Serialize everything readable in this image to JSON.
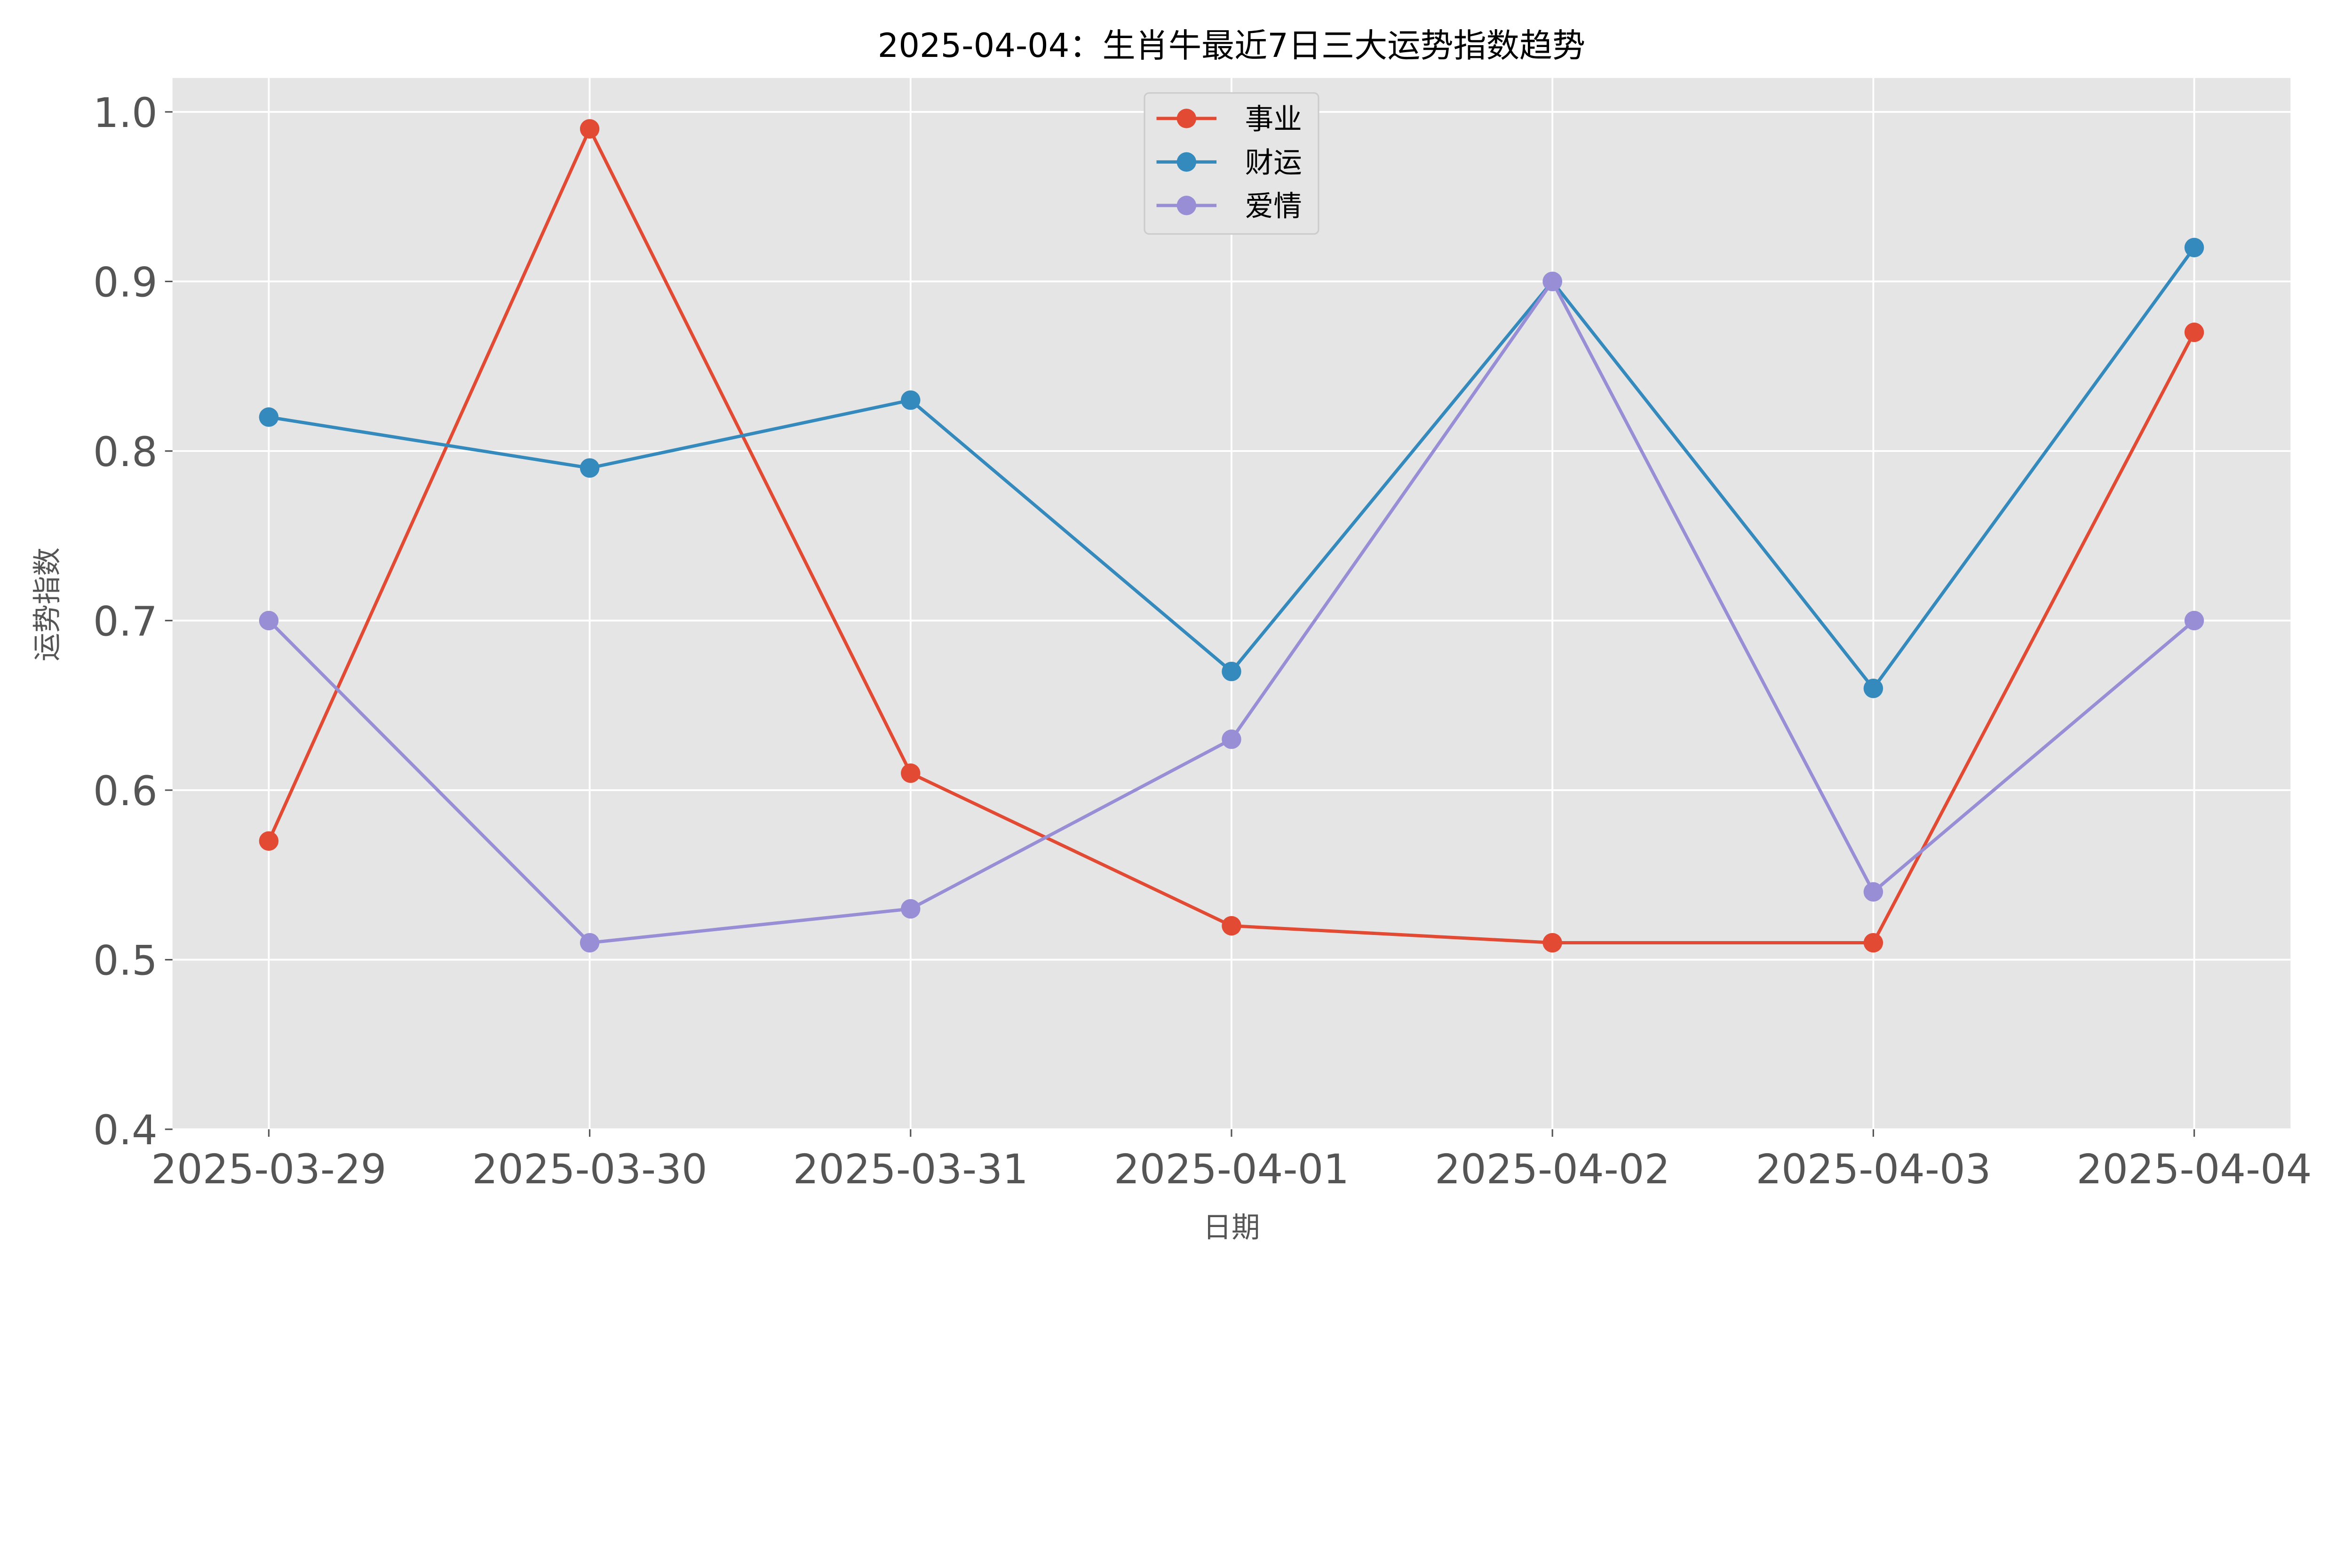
{
  "chart_data": {
    "type": "line",
    "title": "2025-04-04：生肖牛最近7日三大运势指数趋势",
    "xlabel": "日期",
    "ylabel": "运势指数",
    "categories": [
      "2025-03-29",
      "2025-03-30",
      "2025-03-31",
      "2025-04-01",
      "2025-04-02",
      "2025-04-03",
      "2025-04-04"
    ],
    "ylim": [
      0.4,
      1.02
    ],
    "yticks": [
      "0.4",
      "0.5",
      "0.6",
      "0.7",
      "0.8",
      "0.9",
      "1.0"
    ],
    "grid": true,
    "legend_position": "top-center",
    "background": "#e5e5e5",
    "series": [
      {
        "name": "事业",
        "color": "#e24a33",
        "values": [
          0.57,
          0.99,
          0.61,
          0.52,
          0.51,
          0.51,
          0.87
        ]
      },
      {
        "name": "财运",
        "color": "#348abd",
        "values": [
          0.82,
          0.79,
          0.83,
          0.67,
          0.9,
          0.66,
          0.92
        ]
      },
      {
        "name": "爱情",
        "color": "#988ed5",
        "values": [
          0.7,
          0.51,
          0.53,
          0.63,
          0.9,
          0.54,
          0.7
        ]
      }
    ]
  }
}
